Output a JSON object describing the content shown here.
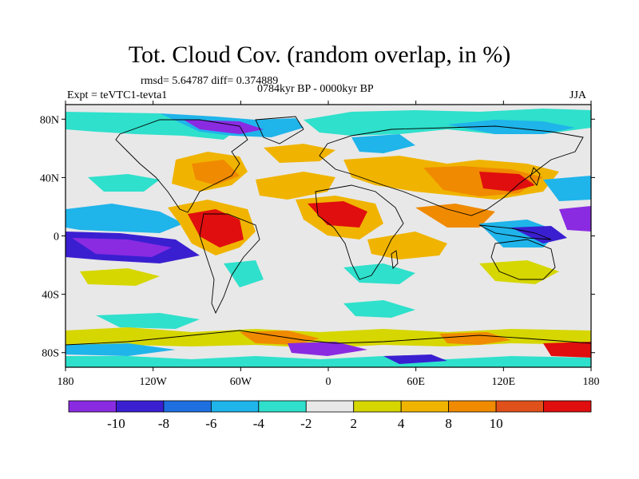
{
  "title": "Tot. Cloud Cov. (random overlap, in %)",
  "stats": "rmsd= 5.64787 diff= 0.374889",
  "experiment": "Expt = teVTC1-tevta1",
  "period": "0784kyr BP - 0000kyr BP",
  "season": "JJA",
  "map": {
    "lon_ticks": [
      "180",
      "120W",
      "60W",
      "0",
      "60E",
      "120E",
      "180"
    ],
    "lat_ticks": [
      "80N",
      "40N",
      "0",
      "40S",
      "80S"
    ],
    "lat_values": [
      80,
      40,
      0,
      -40,
      -80
    ]
  },
  "colorbar": {
    "labels": [
      "-10",
      "-8",
      "-6",
      "-4",
      "-2",
      "2",
      "4",
      "8",
      "10"
    ],
    "colors": [
      "#8a2be2",
      "#3a1fd1",
      "#1e6fe0",
      "#1fb4ea",
      "#2fe0cc",
      "#e8e8e8",
      "#d6d600",
      "#f0b400",
      "#f08a00",
      "#e0501a",
      "#e00e0e"
    ]
  },
  "colors": {
    "land_outline": "#000000",
    "neutral": "#e8e8e8"
  }
}
